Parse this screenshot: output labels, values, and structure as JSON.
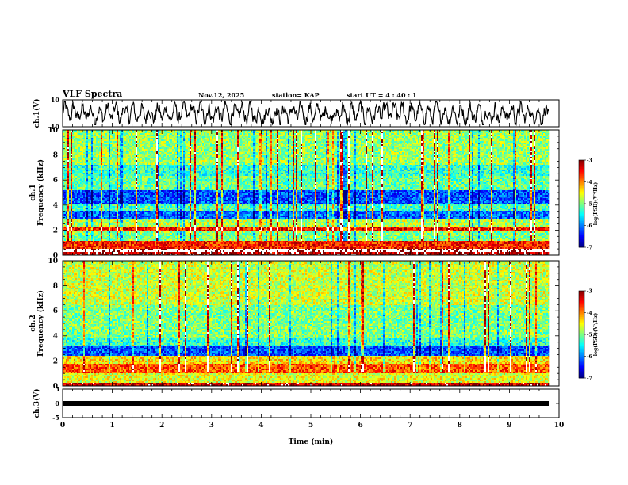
{
  "header": {
    "title": "VLF Spectra",
    "date": "Nov.12, 2025",
    "station": "station= KAP",
    "start": "start  UT =  4 : 40 : 1"
  },
  "chart_data": [
    {
      "type": "line",
      "panel": "ch1-waveform",
      "ylabel": "ch.1(V)",
      "ylim": [
        -10,
        10
      ],
      "yticks": [
        "10",
        "-10"
      ],
      "xlim": [
        0,
        10
      ],
      "x_end": 9.8,
      "description_values": {
        "amplitude_typical": 6
      },
      "color": "#000000"
    },
    {
      "type": "heatmap",
      "panel": "ch1-spectrogram",
      "ylabel": "ch.1\nFrequency (kHz)",
      "ylim": [
        0,
        10
      ],
      "yticks": [
        "0",
        "2",
        "4",
        "6",
        "8",
        "10"
      ],
      "xlim": [
        0,
        10
      ],
      "x_end": 9.8,
      "colorbar": {
        "label": "log(PSD)(V²/Hz)",
        "range": [
          -7,
          -3
        ],
        "ticks": [
          "-3",
          "-4",
          "-5",
          "-6",
          "-7"
        ]
      },
      "bands_khz": [
        {
          "from": 0.0,
          "to": 0.2,
          "level": -3.2
        },
        {
          "from": 0.2,
          "to": 0.5,
          "level": -2.6
        },
        {
          "from": 0.5,
          "to": 1.2,
          "level": -3.6
        },
        {
          "from": 1.2,
          "to": 1.9,
          "level": -5.0
        },
        {
          "from": 1.9,
          "to": 2.3,
          "level": -3.5
        },
        {
          "from": 2.3,
          "to": 2.9,
          "level": -4.8
        },
        {
          "from": 2.9,
          "to": 3.6,
          "level": -6.1
        },
        {
          "from": 3.6,
          "to": 4.1,
          "level": -5.2
        },
        {
          "from": 4.1,
          "to": 5.2,
          "level": -6.2
        },
        {
          "from": 5.2,
          "to": 6.3,
          "level": -5.1
        },
        {
          "from": 6.3,
          "to": 7.2,
          "level": -5.3
        },
        {
          "from": 7.2,
          "to": 10.0,
          "level": -4.9
        }
      ]
    },
    {
      "type": "heatmap",
      "panel": "ch2-spectrogram",
      "ylabel": "ch.2\nFrequency (kHz)",
      "ylim": [
        0,
        10
      ],
      "yticks": [
        "0",
        "2",
        "4",
        "6",
        "8",
        "10"
      ],
      "xlim": [
        0,
        10
      ],
      "x_end": 9.8,
      "colorbar": {
        "label": "log(PSD)(V²/Hz)",
        "range": [
          -7,
          -3
        ],
        "ticks": [
          "-3",
          "-4",
          "-5",
          "-6",
          "-7"
        ]
      },
      "bands_khz": [
        {
          "from": 0.0,
          "to": 0.3,
          "level": -3.3
        },
        {
          "from": 0.3,
          "to": 1.0,
          "level": -4.6
        },
        {
          "from": 1.0,
          "to": 1.8,
          "level": -3.8
        },
        {
          "from": 1.8,
          "to": 2.4,
          "level": -4.4
        },
        {
          "from": 2.4,
          "to": 3.2,
          "level": -6.2
        },
        {
          "from": 3.2,
          "to": 3.8,
          "level": -5.3
        },
        {
          "from": 3.8,
          "to": 5.0,
          "level": -5.0
        },
        {
          "from": 5.0,
          "to": 6.5,
          "level": -5.0
        },
        {
          "from": 6.5,
          "to": 10.0,
          "level": -4.7
        }
      ]
    },
    {
      "type": "line",
      "panel": "ch3-waveform",
      "ylabel": "ch.3(V)",
      "ylim": [
        -5,
        5
      ],
      "yticks": [
        "5",
        "0",
        "-5"
      ],
      "xlim": [
        0,
        10
      ],
      "x_end": 9.8,
      "values": {
        "level": 0.0
      },
      "xlabel": "Time (min)",
      "xticks": [
        "0",
        "1",
        "2",
        "3",
        "4",
        "5",
        "6",
        "7",
        "8",
        "9",
        "10"
      ]
    }
  ]
}
